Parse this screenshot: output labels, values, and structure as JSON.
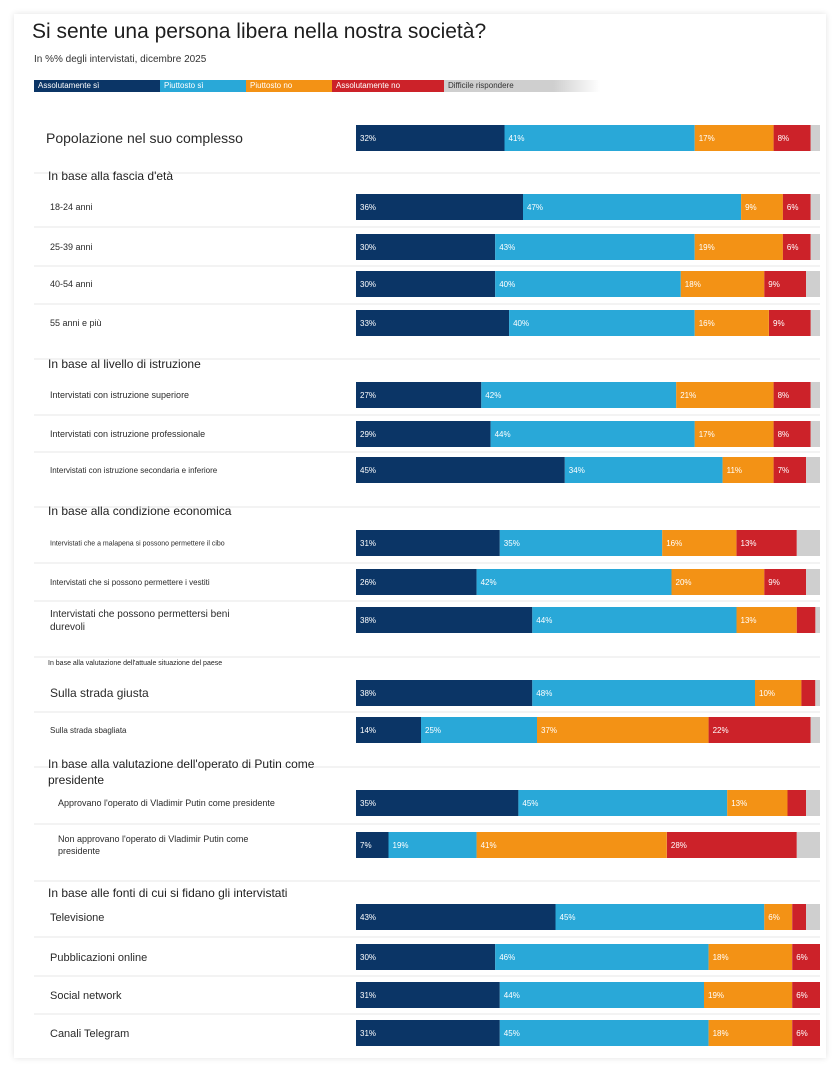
{
  "title": "Si sente una persona libera nella nostra società?",
  "subtitle": "In %% degli intervistati, dicembre 2025",
  "colors": {
    "absolutely_yes": "#0b3566",
    "rather_yes": "#29a8d8",
    "rather_no": "#f39215",
    "absolutely_no": "#cc2229",
    "hard_to_say": "#cfcfcf"
  },
  "chart_data": {
    "type": "bar",
    "orientation": "horizontal",
    "stacked": true,
    "title": "Si sente una persona libera nella nostra società?",
    "subtitle": "In %% degli intervistati, dicembre 2025",
    "xlim": [
      0,
      100
    ],
    "grid": false,
    "legend_position": "top",
    "series": [
      {
        "name": "Assolutamente sì"
      },
      {
        "name": "Piuttosto sì"
      },
      {
        "name": "Piuttosto no"
      },
      {
        "name": "Assolutamente no"
      },
      {
        "name": "Difficile rispondere"
      }
    ],
    "headings": [
      "In base alla fascia d'età",
      "In base al livello di istruzione",
      "In base alla condizione economica",
      "In base alla valutazione dell'attuale situazione del paese",
      "In base alla valutazione dell'operato di Putin come presidente",
      "In base alle fonti di cui si fidano gli intervistati"
    ],
    "categories": [
      "Popolazione nel suo complesso",
      "18-24 anni",
      "25-39 anni",
      "40-54 anni",
      "55 anni e più",
      "Intervistati con istruzione superiore",
      "Intervistati con istruzione professionale",
      "Intervistati con istruzione secondaria e inferiore",
      "Intervistati che a malapena si possono permettere il cibo",
      "Intervistati che si possono permettere i vestiti",
      "Intervistati che possono permettersi beni durevoli",
      "Sulla strada giusta",
      "Sulla strada sbagliata",
      "Approvano l'operato di Vladimir Putin come presidente",
      "Non approvano l'operato di Vladimir Putin come presidente",
      "Televisione",
      "Pubblicazioni online",
      "Social network",
      "Canali Telegram"
    ],
    "values": [
      [
        32,
        41,
        17,
        8,
        2
      ],
      [
        36,
        47,
        9,
        6,
        2
      ],
      [
        30,
        43,
        19,
        6,
        2
      ],
      [
        30,
        40,
        18,
        9,
        3
      ],
      [
        33,
        40,
        16,
        9,
        2
      ],
      [
        27,
        42,
        21,
        8,
        2
      ],
      [
        29,
        44,
        17,
        8,
        2
      ],
      [
        45,
        34,
        11,
        7,
        3
      ],
      [
        31,
        35,
        16,
        13,
        5
      ],
      [
        26,
        42,
        20,
        9,
        3
      ],
      [
        38,
        44,
        13,
        4,
        1
      ],
      [
        38,
        48,
        10,
        3,
        1
      ],
      [
        14,
        25,
        37,
        22,
        2
      ],
      [
        35,
        45,
        13,
        4,
        3
      ],
      [
        7,
        19,
        41,
        28,
        5
      ],
      [
        43,
        45,
        6,
        3,
        3
      ],
      [
        30,
        46,
        18,
        6,
        0
      ],
      [
        31,
        44,
        19,
        6,
        0
      ],
      [
        31,
        45,
        18,
        6,
        0
      ]
    ],
    "labels": [
      [
        "32%",
        "41%",
        "17%",
        "8%",
        ""
      ],
      [
        "36%",
        "47%",
        "9%",
        "6%",
        ""
      ],
      [
        "30%",
        "43%",
        "19%",
        "6%",
        ""
      ],
      [
        "30%",
        "40%",
        "18%",
        "9%",
        ""
      ],
      [
        "33%",
        "40%",
        "16%",
        "9%",
        ""
      ],
      [
        "27%",
        "42%",
        "21%",
        "8%",
        ""
      ],
      [
        "29%",
        "44%",
        "17%",
        "8%",
        ""
      ],
      [
        "45%",
        "34%",
        "11%",
        "7%",
        ""
      ],
      [
        "31%",
        "35%",
        "16%",
        "13%",
        ""
      ],
      [
        "26%",
        "42%",
        "20%",
        "9%",
        ""
      ],
      [
        "38%",
        "44%",
        "13%",
        "",
        ""
      ],
      [
        "38%",
        "48%",
        "10%",
        "",
        ""
      ],
      [
        "14%",
        "25%",
        "37%",
        "22%",
        ""
      ],
      [
        "35%",
        "45%",
        "13%",
        "",
        ""
      ],
      [
        "7%",
        "19%",
        "41%",
        "28%",
        ""
      ],
      [
        "43%",
        "45%",
        "6%",
        "",
        ""
      ],
      [
        "30%",
        "46%",
        "18%",
        "6%",
        ""
      ],
      [
        "31%",
        "44%",
        "19%",
        "6%",
        ""
      ],
      [
        "31%",
        "45%",
        "18%",
        "6%",
        ""
      ]
    ]
  }
}
